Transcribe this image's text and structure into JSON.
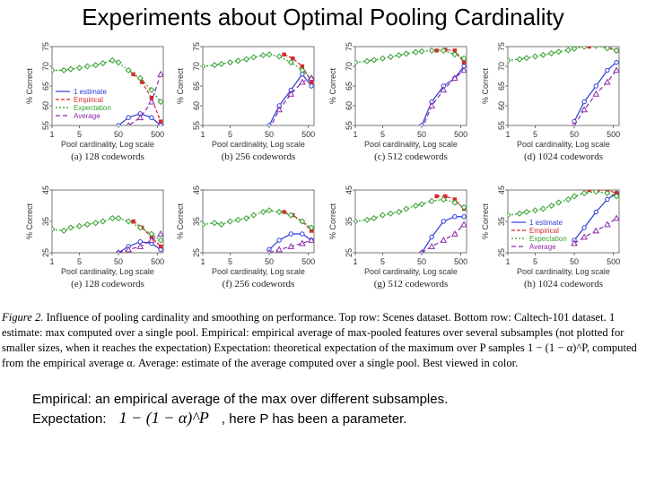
{
  "slide": {
    "title": "Experiments about Optimal Pooling Cardinality",
    "figure_caption": {
      "lead": "Figure 2.",
      "lead_text": "Influence of pooling cardinality and smoothing on performance. Top row: Scenes dataset. Bottom row: Caltech-101 dataset.",
      "body": "1 estimate: max computed over a single pool. Empirical: empirical average of max-pooled features over several subsamples (not plotted for smaller sizes, when it reaches the expectation) Expectation: theoretical expectation of the maximum over P samples 1 − (1 − α)^P, computed from the empirical average α. Average: estimate of the average computed over a single pool. Best viewed in color."
    },
    "definitions": {
      "empirical": "Empirical: an empirical average of the max over different subsamples.",
      "expectation_label": "Expectation:",
      "expectation_formula": "1 − (1 − α)^P",
      "expectation_note": ", here P has been a parameter."
    }
  },
  "chart_data": [
    {
      "type": "line",
      "title": "(a) 128 codewords",
      "xlabel": "Pool cardinality, Log scale",
      "ylabel": "% Correct",
      "x": [
        1,
        5,
        50,
        500
      ],
      "ylim": [
        55,
        75
      ],
      "yticks": [
        55,
        60,
        65,
        70,
        75
      ],
      "legend": [
        "1 estimate",
        "Empirical",
        "Expectation",
        "Average"
      ],
      "series": [
        {
          "name": "1 estimate",
          "x": [
            50,
            90,
            180,
            350,
            600
          ],
          "values": [
            55,
            57,
            58,
            57,
            55
          ]
        },
        {
          "name": "Empirical",
          "x": [
            120,
            200,
            350,
            600
          ],
          "values": [
            68,
            66,
            62,
            56
          ]
        },
        {
          "name": "Expectation",
          "x": [
            1,
            2,
            3,
            5,
            8,
            13,
            20,
            35,
            50,
            90,
            180,
            350,
            600
          ],
          "values": [
            69,
            69,
            69.3,
            69.6,
            70,
            70.3,
            70.8,
            71.5,
            71,
            69,
            67,
            64,
            61
          ]
        },
        {
          "name": "Average",
          "x": [
            50,
            90,
            180,
            350,
            600
          ],
          "values": [
            53,
            55,
            57,
            61,
            68
          ]
        }
      ]
    },
    {
      "type": "line",
      "title": "(b) 256 codewords",
      "xlabel": "Pool cardinality, Log scale",
      "ylabel": "% Correct",
      "x": [
        1,
        5,
        50,
        500
      ],
      "ylim": [
        55,
        75
      ],
      "yticks": [
        55,
        60,
        65,
        70,
        75
      ],
      "series": [
        {
          "name": "1 estimate",
          "x": [
            50,
            90,
            180,
            350,
            600
          ],
          "values": [
            55,
            60,
            64,
            68,
            65
          ]
        },
        {
          "name": "Empirical",
          "x": [
            120,
            200,
            350,
            600
          ],
          "values": [
            73,
            72,
            70,
            66
          ]
        },
        {
          "name": "Expectation",
          "x": [
            1,
            2,
            3,
            5,
            8,
            13,
            20,
            35,
            50,
            90,
            180,
            350,
            600
          ],
          "values": [
            70,
            70.3,
            70.6,
            71,
            71.4,
            71.8,
            72.3,
            72.8,
            73,
            72.5,
            71,
            69,
            67
          ]
        },
        {
          "name": "Average",
          "x": [
            50,
            90,
            180,
            350,
            600
          ],
          "values": [
            54,
            59,
            63,
            66,
            67
          ]
        }
      ]
    },
    {
      "type": "line",
      "title": "(c) 512 codewords",
      "xlabel": "Pool cardinality, Log scale",
      "ylabel": "% Correct",
      "x": [
        1,
        5,
        50,
        500
      ],
      "ylim": [
        55,
        75
      ],
      "yticks": [
        55,
        60,
        65,
        70,
        75
      ],
      "series": [
        {
          "name": "1 estimate",
          "x": [
            50,
            90,
            180,
            350,
            600
          ],
          "values": [
            55,
            61,
            65,
            67,
            70
          ]
        },
        {
          "name": "Empirical",
          "x": [
            120,
            200,
            350,
            600
          ],
          "values": [
            74,
            74.2,
            74,
            71
          ]
        },
        {
          "name": "Expectation",
          "x": [
            1,
            2,
            3,
            5,
            8,
            13,
            20,
            35,
            50,
            90,
            180,
            350,
            600
          ],
          "values": [
            71,
            71.3,
            71.6,
            72,
            72.4,
            72.8,
            73.2,
            73.6,
            73.8,
            74,
            74,
            73,
            72
          ]
        },
        {
          "name": "Average",
          "x": [
            50,
            90,
            180,
            350,
            600
          ],
          "values": [
            54,
            60,
            64,
            67,
            69
          ]
        }
      ]
    },
    {
      "type": "line",
      "title": "(d) 1024 codewords",
      "xlabel": "Pool cardinality, Log scale",
      "ylabel": "% Correct",
      "x": [
        1,
        5,
        50,
        500
      ],
      "ylim": [
        55,
        75
      ],
      "yticks": [
        55,
        60,
        65,
        70,
        75
      ],
      "series": [
        {
          "name": "1 estimate",
          "x": [
            50,
            90,
            180,
            350,
            600
          ],
          "values": [
            56,
            61,
            65,
            69,
            71
          ]
        },
        {
          "name": "Empirical",
          "x": [
            120,
            200,
            350,
            600
          ],
          "values": [
            75,
            75.5,
            75,
            74
          ]
        },
        {
          "name": "Expectation",
          "x": [
            1,
            2,
            3,
            5,
            8,
            13,
            20,
            35,
            50,
            90,
            180,
            350,
            600
          ],
          "values": [
            71.5,
            71.8,
            72.1,
            72.5,
            72.9,
            73.3,
            73.7,
            74.1,
            74.5,
            75,
            75.2,
            74.6,
            74
          ]
        },
        {
          "name": "Average",
          "x": [
            50,
            90,
            180,
            350,
            600
          ],
          "values": [
            55,
            59,
            63,
            66,
            69
          ]
        }
      ]
    },
    {
      "type": "line",
      "title": "(e) 128 codewords",
      "xlabel": "Pool cardinality, Log scale",
      "ylabel": "% Correct",
      "x": [
        1,
        5,
        50,
        500
      ],
      "ylim": [
        25,
        45
      ],
      "yticks": [
        25,
        35,
        45
      ],
      "series": [
        {
          "name": "1 estimate",
          "x": [
            50,
            90,
            180,
            350,
            600
          ],
          "values": [
            25,
            27,
            28.5,
            28,
            26
          ]
        },
        {
          "name": "Empirical",
          "x": [
            120,
            200,
            350,
            600
          ],
          "values": [
            35,
            33,
            30,
            27
          ]
        },
        {
          "name": "Expectation",
          "x": [
            1,
            2,
            3,
            5,
            8,
            13,
            20,
            35,
            50,
            90,
            180,
            350,
            600
          ],
          "values": [
            32.5,
            32,
            33,
            33.5,
            34,
            34.5,
            35,
            36,
            36,
            35,
            33,
            31,
            29
          ]
        },
        {
          "name": "Average",
          "x": [
            50,
            90,
            180,
            350,
            600
          ],
          "values": [
            25,
            26,
            27,
            29,
            31
          ]
        }
      ]
    },
    {
      "type": "line",
      "title": "(f) 256 codewords",
      "xlabel": "Pool cardinality, Log scale",
      "ylabel": "% Correct",
      "x": [
        1,
        5,
        50,
        500
      ],
      "ylim": [
        25,
        45
      ],
      "yticks": [
        25,
        35,
        45
      ],
      "series": [
        {
          "name": "1 estimate",
          "x": [
            50,
            90,
            180,
            350,
            600
          ],
          "values": [
            26,
            29,
            31,
            31,
            29
          ]
        },
        {
          "name": "Empirical",
          "x": [
            120,
            200,
            350,
            600
          ],
          "values": [
            38,
            37,
            35,
            32
          ]
        },
        {
          "name": "Expectation",
          "x": [
            1,
            2,
            3,
            5,
            8,
            13,
            20,
            35,
            50,
            90,
            180,
            350,
            600
          ],
          "values": [
            34,
            34.5,
            34,
            35,
            35.5,
            36,
            37,
            38,
            38.5,
            38,
            37,
            35,
            33
          ]
        },
        {
          "name": "Average",
          "x": [
            50,
            90,
            180,
            350,
            600
          ],
          "values": [
            25,
            26,
            27,
            28,
            29
          ]
        }
      ]
    },
    {
      "type": "line",
      "title": "(g) 512 codewords",
      "xlabel": "Pool cardinality, Log scale",
      "ylabel": "% Correct",
      "x": [
        1,
        5,
        50,
        500
      ],
      "ylim": [
        25,
        45
      ],
      "yticks": [
        25,
        35,
        45
      ],
      "series": [
        {
          "name": "1 estimate",
          "x": [
            50,
            90,
            180,
            350,
            600
          ],
          "values": [
            25,
            30,
            35,
            36.5,
            36.5
          ]
        },
        {
          "name": "Empirical",
          "x": [
            120,
            200,
            350,
            600
          ],
          "values": [
            43,
            43,
            42,
            39
          ]
        },
        {
          "name": "Expectation",
          "x": [
            1,
            2,
            3,
            5,
            8,
            13,
            20,
            35,
            50,
            90,
            180,
            350,
            600
          ],
          "values": [
            35,
            35.5,
            36,
            37,
            37.5,
            38,
            39,
            40,
            40.5,
            41.5,
            42,
            41,
            39.5
          ]
        },
        {
          "name": "Average",
          "x": [
            50,
            90,
            180,
            350,
            600
          ],
          "values": [
            25,
            27,
            29,
            31,
            34
          ]
        }
      ]
    },
    {
      "type": "line",
      "title": "(h) 1024 codewords",
      "xlabel": "Pool cardinality, Log scale",
      "ylabel": "% Correct",
      "x": [
        1,
        5,
        50,
        500
      ],
      "ylim": [
        25,
        45
      ],
      "yticks": [
        25,
        35,
        45
      ],
      "legend": [
        "1 estimate",
        "Empirical",
        "Expectation",
        "Average"
      ],
      "series": [
        {
          "name": "1 estimate",
          "x": [
            50,
            90,
            180,
            350,
            600
          ],
          "values": [
            29,
            33,
            38,
            42,
            44
          ]
        },
        {
          "name": "Empirical",
          "x": [
            120,
            200,
            350,
            600
          ],
          "values": [
            45,
            45,
            45,
            44
          ]
        },
        {
          "name": "Expectation",
          "x": [
            1,
            2,
            3,
            5,
            8,
            13,
            20,
            35,
            50,
            90,
            180,
            350,
            600
          ],
          "values": [
            37,
            37.5,
            38,
            38.5,
            39,
            40,
            41,
            42,
            43,
            44,
            44.5,
            44,
            43
          ]
        },
        {
          "name": "Average",
          "x": [
            50,
            90,
            180,
            350,
            600
          ],
          "values": [
            28,
            30,
            32,
            34,
            36
          ]
        }
      ]
    }
  ],
  "colors": {
    "estimate": "#2b3bd6",
    "empirical": "#d62828",
    "expectation": "#33a02c",
    "average": "#8b2ca8"
  }
}
